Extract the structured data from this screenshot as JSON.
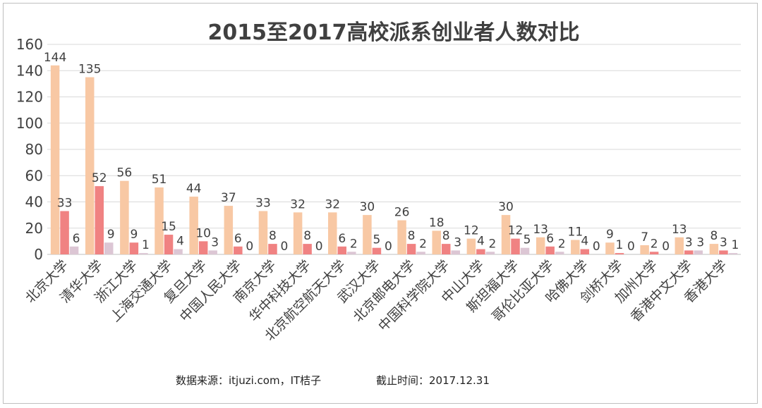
{
  "chart_data": {
    "type": "bar",
    "title": "2015至2017高校派系创业者人数对比",
    "ylim": [
      0,
      160
    ],
    "yticks": [
      0,
      20,
      40,
      60,
      80,
      100,
      120,
      140,
      160
    ],
    "grid": true,
    "legend": "none",
    "categories": [
      "北京大学",
      "清华大学",
      "浙江大学",
      "上海交通大学",
      "复旦大学",
      "中国人民大学",
      "南京大学",
      "华中科技大学",
      "北京航空航天大学",
      "武汉大学",
      "北京邮电大学",
      "中国科学院大学",
      "中山大学",
      "斯坦福大学",
      "哥伦比亚大学",
      "哈佛大学",
      "剑桥大学",
      "加州大学",
      "香港中文大学",
      "香港大学"
    ],
    "series": [
      {
        "values": [
          144,
          135,
          56,
          51,
          44,
          37,
          33,
          32,
          32,
          30,
          26,
          18,
          12,
          30,
          13,
          11,
          9,
          7,
          13,
          8
        ],
        "color": "#f8c8a4"
      },
      {
        "values": [
          33,
          52,
          9,
          15,
          10,
          6,
          8,
          8,
          6,
          5,
          8,
          8,
          4,
          12,
          6,
          4,
          1,
          2,
          3,
          3
        ],
        "color": "#f08282"
      },
      {
        "values": [
          6,
          9,
          1,
          4,
          3,
          0,
          0,
          0,
          2,
          0,
          2,
          3,
          2,
          5,
          2,
          0,
          0,
          0,
          3,
          1
        ],
        "color": "#dcc6d4"
      }
    ]
  },
  "footer": {
    "source": "数据来源：itjuzi.com，IT桔子",
    "cutoff": "截止时间：2017.12.31"
  }
}
